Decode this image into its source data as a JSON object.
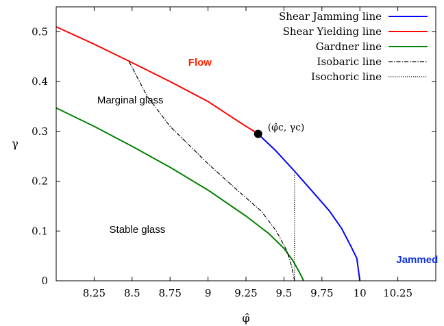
{
  "chart_data": {
    "type": "line",
    "xlabel": "φ̂",
    "ylabel": "γ",
    "xlim": [
      8.0,
      10.5
    ],
    "ylim": [
      0,
      0.55
    ],
    "xticks": [
      8.25,
      8.5,
      8.75,
      9,
      9.25,
      9.5,
      9.75,
      10,
      10.25
    ],
    "xtick_labels": [
      "8.25",
      "8.5",
      "8.75",
      "9",
      "9.25",
      "9.5",
      "9.75",
      "10",
      "10.25"
    ],
    "yticks": [
      0,
      0.1,
      0.2,
      0.3,
      0.4,
      0.5
    ],
    "ytick_labels": [
      "0",
      "0.1",
      "0.2",
      "0.3",
      "0.4",
      "0.5"
    ],
    "legend_position": "top-right",
    "series": [
      {
        "name": "Shear Jamming line",
        "color": "#0000ff",
        "style": "solid",
        "x": [
          9.33,
          9.45,
          9.57,
          9.7,
          9.8,
          9.88,
          9.94,
          9.98,
          10.0
        ],
        "y": [
          0.295,
          0.26,
          0.22,
          0.175,
          0.14,
          0.105,
          0.07,
          0.045,
          0.0
        ]
      },
      {
        "name": "Shear Yielding line",
        "color": "#ff0000",
        "style": "solid",
        "x": [
          8.0,
          8.25,
          8.5,
          8.75,
          9.0,
          9.2,
          9.33
        ],
        "y": [
          0.51,
          0.475,
          0.438,
          0.4,
          0.36,
          0.32,
          0.295
        ]
      },
      {
        "name": "Gardner line",
        "color": "#008000",
        "style": "solid",
        "x": [
          8.0,
          8.25,
          8.5,
          8.75,
          9.0,
          9.25,
          9.4,
          9.5,
          9.56,
          9.6,
          9.63
        ],
        "y": [
          0.347,
          0.31,
          0.27,
          0.228,
          0.182,
          0.13,
          0.095,
          0.065,
          0.04,
          0.018,
          0.0
        ]
      },
      {
        "name": "Isobaric line",
        "color": "#000000",
        "style": "dashdot",
        "x": [
          8.48,
          8.6,
          8.75,
          9.0,
          9.2,
          9.35,
          9.45,
          9.52,
          9.55,
          9.57
        ],
        "y": [
          0.44,
          0.37,
          0.31,
          0.235,
          0.18,
          0.14,
          0.1,
          0.06,
          0.03,
          0.0
        ]
      },
      {
        "name": "Isochoric line",
        "color": "#000000",
        "style": "dotted",
        "x": [
          9.57,
          9.57
        ],
        "y": [
          0.0,
          0.215
        ]
      }
    ],
    "point": {
      "x": 9.33,
      "y": 0.295,
      "label": "(φ̂c, γc)"
    },
    "annotations": [
      {
        "text": "Flow",
        "x": 8.87,
        "y": 0.432,
        "color": "#ff2200",
        "bold": true
      },
      {
        "text": "Marginal glass",
        "x": 8.27,
        "y": 0.356,
        "color": "#000000",
        "bold": false
      },
      {
        "text": "Stable glass",
        "x": 8.35,
        "y": 0.096,
        "color": "#000000",
        "bold": false
      },
      {
        "text": "Jammed",
        "x": 10.24,
        "y": 0.036,
        "color": "#1133dd",
        "bold": true
      }
    ]
  }
}
